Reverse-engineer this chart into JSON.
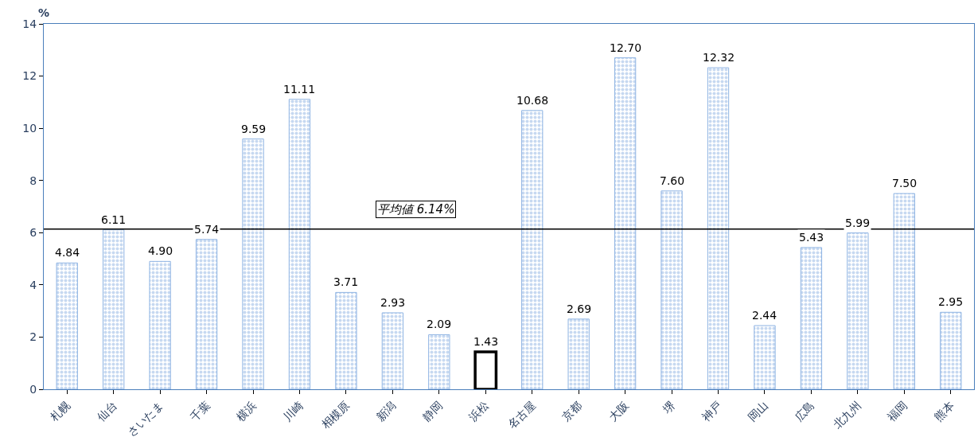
{
  "chart_data": {
    "type": "bar",
    "ylabel": "%",
    "categories": [
      "札幌",
      "仙台",
      "さいたま",
      "千葉",
      "横浜",
      "川崎",
      "相模原",
      "新潟",
      "静岡",
      "浜松",
      "名古屋",
      "京都",
      "大阪",
      "堺",
      "神戸",
      "岡山",
      "広島",
      "北九州",
      "福岡",
      "熊本"
    ],
    "values": [
      4.84,
      6.11,
      4.9,
      5.74,
      9.59,
      11.11,
      3.71,
      2.93,
      2.09,
      1.43,
      10.68,
      2.69,
      12.7,
      7.6,
      12.32,
      2.44,
      5.43,
      5.99,
      7.5,
      2.95
    ],
    "value_labels": [
      "4.84",
      "6.11",
      "4.90",
      "5.74",
      "9.59",
      "11.11",
      "3.71",
      "2.93",
      "2.09",
      "1.43",
      "10.68",
      "2.69",
      "12.70",
      "7.60",
      "12.32",
      "2.44",
      "5.43",
      "5.99",
      "7.50",
      "2.95"
    ],
    "colors": [
      "#8fb4e3",
      "#8fb4e3",
      "#8fb4e3",
      "#8fb4e3",
      "#8fb4e3",
      "#8fb4e3",
      "#8fb4e3",
      "#8fb4e3",
      "#8fb4e3",
      "#ffffff",
      "#8fb4e3",
      "#8fb4e3",
      "#8fb4e3",
      "#8fb4e3",
      "#8fb4e3",
      "#8fb4e3",
      "#8fb4e3",
      "#8fb4e3",
      "#8fb4e3",
      "#8fb4e3"
    ],
    "ylim": [
      0,
      14
    ],
    "yticks": [
      0,
      2,
      4,
      6,
      8,
      10,
      12,
      14
    ],
    "ref_lines": [
      {
        "axis": "y",
        "value": 6.14,
        "label": "平均値 6.14%",
        "color": "#000000"
      }
    ]
  }
}
